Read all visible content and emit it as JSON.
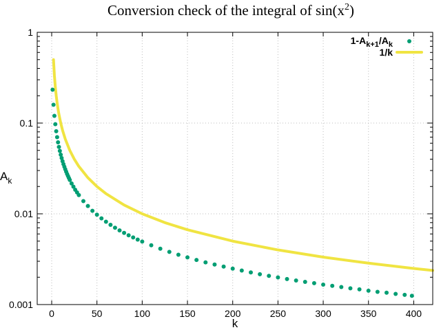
{
  "chart_data": {
    "type": "scatter",
    "title": "Conversion check of the integral of sin(x",
    "title_sup": "2",
    "title_end": ")",
    "xlabel": "k",
    "ylabel": "A",
    "ylabel_sub": "k",
    "xlim": [
      -16,
      421
    ],
    "ylim": [
      0.001,
      1
    ],
    "yscale": "log",
    "grid": true,
    "legend_position": "top-right",
    "x_ticks": [
      0,
      50,
      100,
      150,
      200,
      250,
      300,
      350,
      400
    ],
    "x_tick_labels": [
      "0",
      "50",
      "100",
      "150",
      "200",
      "250",
      "300",
      "350",
      "400"
    ],
    "y_ticks": [
      1,
      0.1,
      0.01,
      0.001
    ],
    "y_tick_labels": [
      "1",
      "0.1",
      "0.01",
      "0.001"
    ],
    "series": [
      {
        "name": "1-A",
        "name_sub1": "k+1",
        "name_mid": "/A",
        "name_sub2": "k",
        "style": "points",
        "color": "#009e73",
        "x": [
          1,
          2,
          3,
          4,
          5,
          6,
          7,
          8,
          9,
          10,
          11,
          12,
          13,
          14,
          15,
          16,
          17,
          18,
          19,
          20,
          22,
          24,
          26,
          28,
          30,
          35,
          40,
          45,
          50,
          55,
          60,
          65,
          70,
          75,
          80,
          85,
          90,
          95,
          100,
          110,
          120,
          130,
          140,
          150,
          160,
          170,
          180,
          190,
          200,
          210,
          220,
          230,
          240,
          250,
          260,
          270,
          280,
          290,
          300,
          310,
          320,
          330,
          340,
          350,
          360,
          370,
          380,
          390,
          398
        ],
        "y": [
          0.233,
          0.159,
          0.12,
          0.0971,
          0.0813,
          0.0699,
          0.0613,
          0.0546,
          0.0493,
          0.0448,
          0.0412,
          0.038,
          0.0353,
          0.033,
          0.031,
          0.0292,
          0.0275,
          0.0261,
          0.0248,
          0.0236,
          0.0216,
          0.0199,
          0.0184,
          0.0172,
          0.0161,
          0.0138,
          0.0122,
          0.0108,
          0.00978,
          0.0089,
          0.00818,
          0.00756,
          0.00703,
          0.00657,
          0.00616,
          0.0058,
          0.00549,
          0.0052,
          0.00494,
          0.0045,
          0.00413,
          0.00381,
          0.00354,
          0.00331,
          0.0031,
          0.00292,
          0.00276,
          0.00262,
          0.00249,
          0.00237,
          0.00226,
          0.00216,
          0.00207,
          0.00199,
          0.00191,
          0.00184,
          0.00178,
          0.00172,
          0.00166,
          0.00161,
          0.00156,
          0.00151,
          0.00147,
          0.00142,
          0.00138,
          0.00135,
          0.00131,
          0.00128,
          0.00125
        ]
      },
      {
        "name": "1/k",
        "style": "line",
        "color": "#f0e442",
        "x": [
          2,
          3,
          4,
          5,
          6,
          7,
          8,
          10,
          12,
          15,
          20,
          25,
          30,
          40,
          50,
          60,
          80,
          100,
          125,
          150,
          200,
          250,
          300,
          350,
          400,
          421
        ],
        "y": [
          0.5,
          0.3333,
          0.25,
          0.2,
          0.1667,
          0.1429,
          0.125,
          0.1,
          0.0833,
          0.0667,
          0.05,
          0.04,
          0.0333,
          0.025,
          0.02,
          0.01667,
          0.0125,
          0.01,
          0.008,
          0.00667,
          0.005,
          0.004,
          0.00333,
          0.00286,
          0.0025,
          0.002375
        ]
      }
    ]
  }
}
